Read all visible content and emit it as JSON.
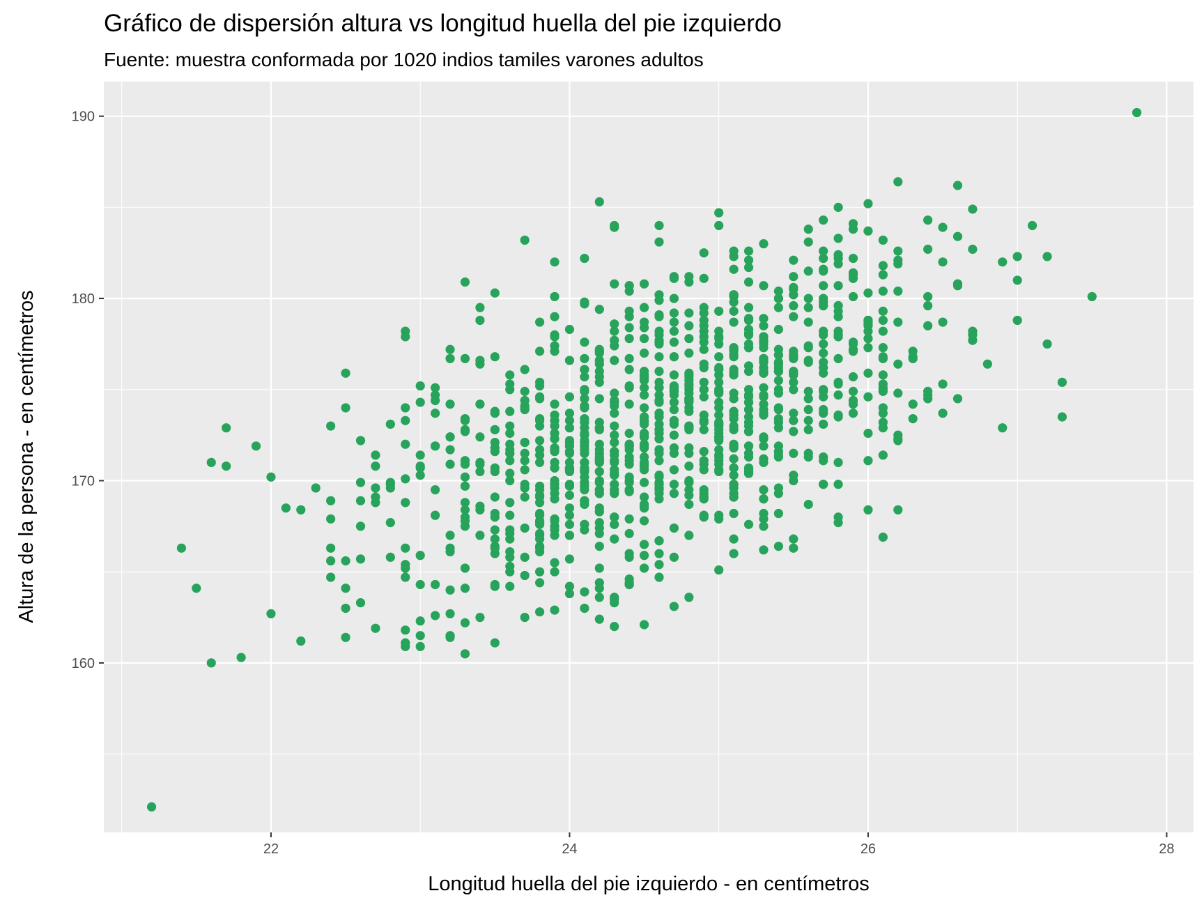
{
  "chart_data": {
    "type": "scatter",
    "title": "Gráfico de dispersión altura vs longitud huella del pie izquierdo",
    "subtitle": "Fuente: muestra conformada por 1020 indios tamiles varones adultos",
    "xlabel": "Longitud huella del pie izquierdo - en centímetros",
    "ylabel": "Altura de la persona - en centímetros",
    "xlim": [
      20.88,
      28.18
    ],
    "ylim": [
      150.7,
      191.9
    ],
    "x_ticks": [
      22,
      24,
      26,
      28
    ],
    "x_tick_labels": [
      "22",
      "24",
      "26",
      "28"
    ],
    "y_ticks": [
      160,
      170,
      180,
      190
    ],
    "y_tick_labels": [
      "160",
      "170",
      "180",
      "190"
    ],
    "grid": true,
    "panel_background": "#ebebeb",
    "grid_color": "#ffffff",
    "point_color": "#27a35b",
    "sample_size": 1020,
    "highlighted_points": [
      {
        "x": 21.2,
        "y": 152.1
      },
      {
        "x": 27.8,
        "y": 190.2
      },
      {
        "x": 27.5,
        "y": 180.1
      },
      {
        "x": 21.4,
        "y": 166.3
      },
      {
        "x": 21.6,
        "y": 160.0
      },
      {
        "x": 21.8,
        "y": 160.3
      },
      {
        "x": 21.5,
        "y": 164.1
      },
      {
        "x": 21.7,
        "y": 172.9
      },
      {
        "x": 21.6,
        "y": 171.0
      },
      {
        "x": 21.9,
        "y": 171.9
      },
      {
        "x": 22.2,
        "y": 161.2
      },
      {
        "x": 23.3,
        "y": 160.5
      },
      {
        "x": 26.2,
        "y": 186.4
      },
      {
        "x": 26.6,
        "y": 186.2
      },
      {
        "x": 27.3,
        "y": 175.4
      },
      {
        "x": 27.2,
        "y": 182.3
      },
      {
        "x": 27.1,
        "y": 184.0
      },
      {
        "x": 26.7,
        "y": 184.9
      },
      {
        "x": 24.7,
        "y": 163.1
      },
      {
        "x": 24.8,
        "y": 163.6
      },
      {
        "x": 24.4,
        "y": 164.3
      },
      {
        "x": 23.7,
        "y": 162.5
      },
      {
        "x": 23.8,
        "y": 162.8
      },
      {
        "x": 22.9,
        "y": 161.8
      }
    ],
    "point_cloud": {
      "count": 1020,
      "x_mean": 24.6,
      "x_sd": 1.0,
      "y_mean": 173.3,
      "y_sd": 5.0,
      "correlation": 0.55
    }
  }
}
